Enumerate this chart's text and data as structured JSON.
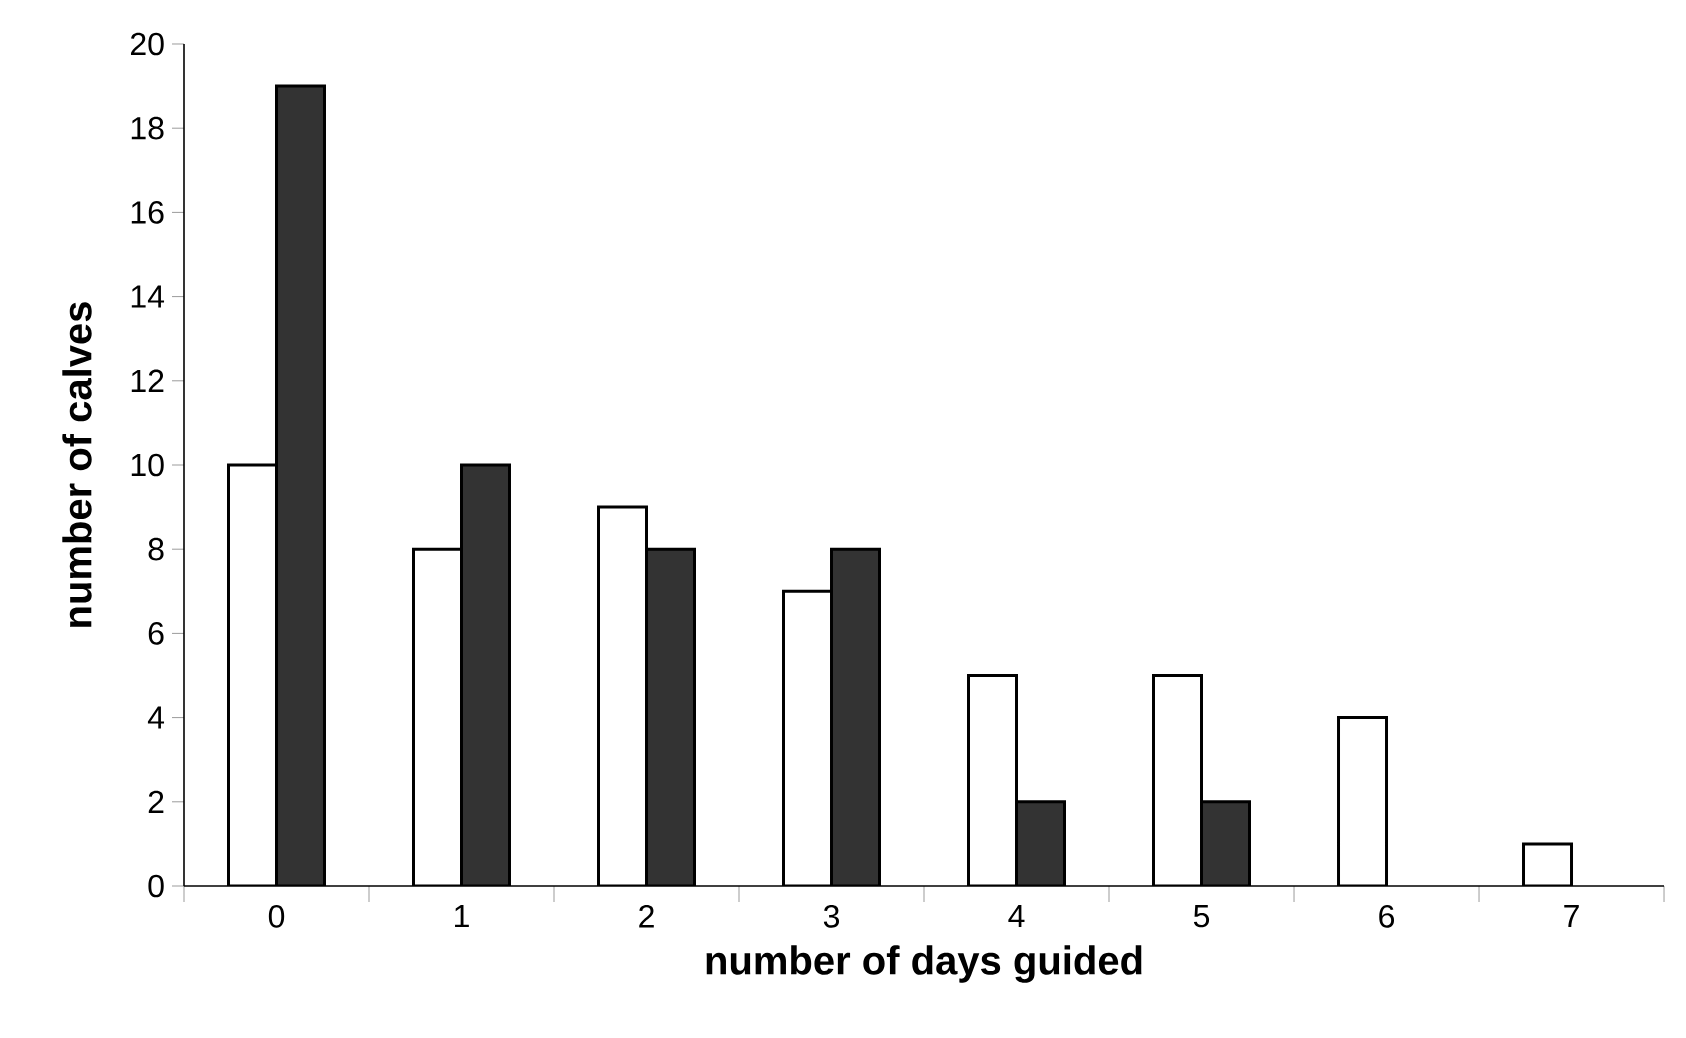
{
  "chart_data": {
    "type": "bar",
    "xlabel": "number of days guided",
    "ylabel": "number of calves",
    "categories": [
      "0",
      "1",
      "2",
      "3",
      "4",
      "5",
      "6",
      "7"
    ],
    "series": [
      {
        "color": "#ffffff",
        "values": [
          10,
          8,
          9,
          7,
          5,
          5,
          4,
          1
        ]
      },
      {
        "color": "#333333",
        "values": [
          19,
          10,
          8,
          8,
          2,
          2,
          null,
          null
        ]
      }
    ],
    "ylim": [
      0,
      20
    ],
    "yticks": [
      0,
      2,
      4,
      6,
      8,
      10,
      12,
      14,
      16,
      18,
      20
    ],
    "grid": false
  }
}
